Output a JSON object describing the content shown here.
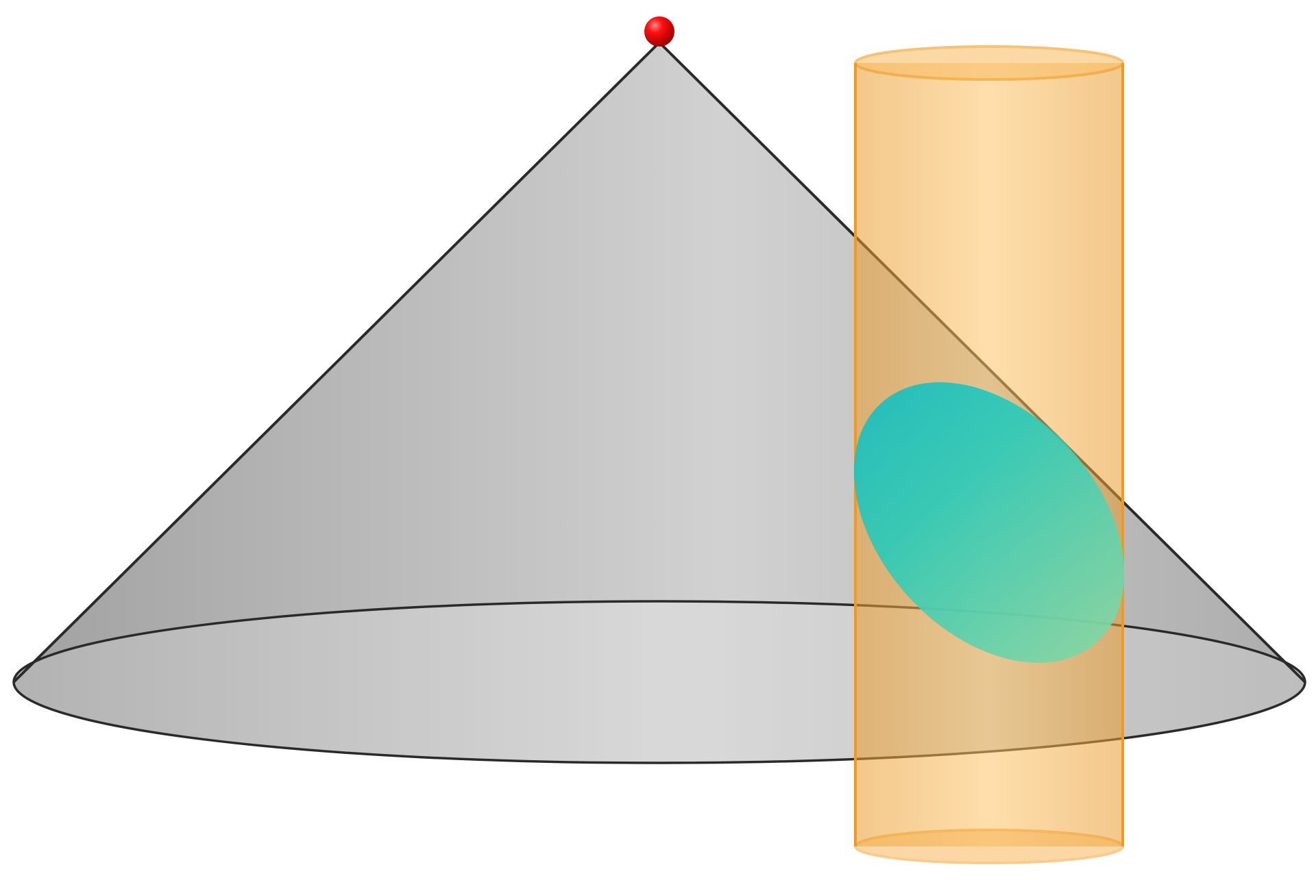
{
  "figure": {
    "background_color": "#ffffff",
    "objects": [
      {
        "name": "cone",
        "icon": "cone-icon",
        "fill_color": "#b7b7b7",
        "edge_color": "#2a2a2a"
      },
      {
        "name": "cone-apex-point",
        "icon": "red-sphere-icon",
        "color": "#e00000"
      },
      {
        "name": "cylinder",
        "icon": "cylinder-icon",
        "fill_color": "#f7b24a",
        "edge_color": "#f39a1e"
      },
      {
        "name": "intersection-ellipse",
        "icon": "ellipse-icon",
        "color": "#27c7b6"
      }
    ]
  }
}
